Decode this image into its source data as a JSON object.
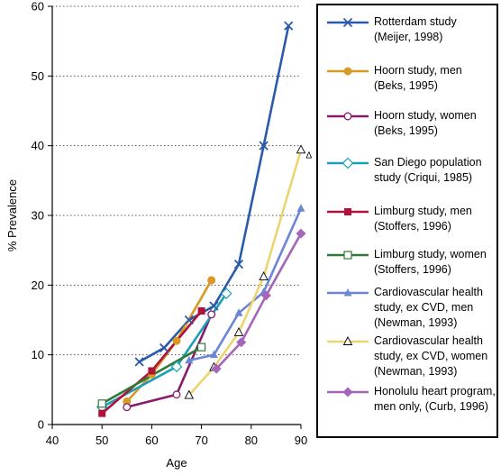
{
  "chart_data": {
    "type": "line",
    "title": "",
    "xlabel": "Age",
    "ylabel": "% Prevalence",
    "xlim": [
      40,
      90
    ],
    "ylim": [
      0,
      60
    ],
    "xticks": [
      "40",
      "50",
      "60",
      "70",
      "80",
      "90"
    ],
    "yticks": [
      "0",
      "10",
      "20",
      "30",
      "40",
      "50",
      "60"
    ],
    "grid": "horizontal dotted",
    "legend_position": "right",
    "series": [
      {
        "name": "Rotterdam study\n(Meijer, 1998)",
        "color": "#2a5bab",
        "marker": "x",
        "x": [
          57.5,
          62.5,
          67.5,
          72.5,
          77.5,
          82.5,
          87.5
        ],
        "y": [
          9,
          11,
          15,
          17,
          23,
          40,
          57.2
        ]
      },
      {
        "name": "Hoorn study, men\n(Beks, 1995)",
        "color": "#d89a22",
        "marker": "circle-filled",
        "x": [
          55,
          60,
          65,
          72
        ],
        "y": [
          3.3,
          7.2,
          12,
          20.7
        ]
      },
      {
        "name": "Hoorn study, women\n(Beks, 1995)",
        "color": "#8b1a6b",
        "marker": "circle-open",
        "x": [
          55,
          65,
          72
        ],
        "y": [
          2.5,
          4.3,
          15.8
        ]
      },
      {
        "name": "San Diego population\nstudy (Criqui, 1985)",
        "color": "#1aa0b8",
        "marker": "diamond-open",
        "x": [
          50,
          65,
          75
        ],
        "y": [
          2.5,
          8.3,
          18.8
        ]
      },
      {
        "name": "Limburg study, men\n(Stoffers, 1996)",
        "color": "#b0123a",
        "marker": "square-filled",
        "x": [
          50,
          60,
          70
        ],
        "y": [
          1.6,
          7.7,
          16.3
        ]
      },
      {
        "name": "Limburg study, women\n(Stoffers, 1996)",
        "color": "#2f7a3a",
        "marker": "square-open",
        "x": [
          50,
          70
        ],
        "y": [
          3.0,
          11.1
        ]
      },
      {
        "name": "Cardiovascular health\nstudy, ex CVD, men\n(Newman, 1993)",
        "color": "#6b86d6",
        "marker": "triangle-filled",
        "x": [
          67.5,
          72.5,
          77.5,
          82.5,
          90
        ],
        "y": [
          9.2,
          10,
          16,
          19,
          31
        ]
      },
      {
        "name": "Cardiovascular health\nstudy, ex CVD, women\n(Newman, 1993)",
        "color": "#ecd470",
        "marker": "triangle-open",
        "x": [
          67.5,
          72.5,
          77.5,
          82.5,
          90
        ],
        "y": [
          4.2,
          8.2,
          13.2,
          21.2,
          39.4
        ]
      },
      {
        "name": "Honolulu heart program,\nmen only, (Curb, 1996)",
        "color": "#a565b8",
        "marker": "diamond-filled",
        "x": [
          73,
          78,
          83,
          90
        ],
        "y": [
          8,
          11.8,
          18.5,
          27.4
        ]
      }
    ],
    "annotations": [
      {
        "text": "Δ",
        "x": 91.6,
        "y": 38.7
      }
    ]
  }
}
